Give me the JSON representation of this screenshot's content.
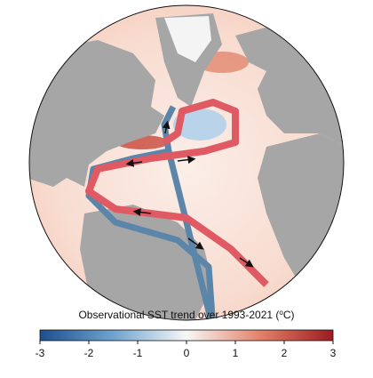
{
  "colorbar": {
    "label": "Observational SST trend over 1993-2021 (",
    "label_sup": "o",
    "label_end": "C)",
    "lim": [
      -3,
      3
    ],
    "ticks": [
      -3,
      -2,
      -1,
      0,
      1,
      2,
      3
    ]
  }
}
